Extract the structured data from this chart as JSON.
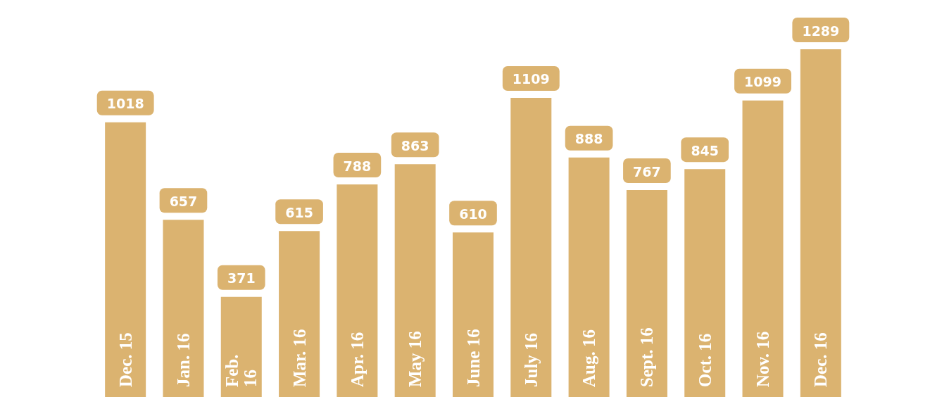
{
  "chart_data": {
    "type": "bar",
    "categories": [
      "Dec. 15",
      "Jan. 16",
      "Feb. 16",
      "Mar. 16",
      "Apr. 16",
      "May 16",
      "June 16",
      "July 16",
      "Aug. 16",
      "Sept. 16",
      "Oct. 16",
      "Nov. 16",
      "Dec. 16"
    ],
    "values": [
      1018,
      657,
      371,
      615,
      788,
      863,
      610,
      1109,
      888,
      767,
      845,
      1099,
      1289
    ],
    "color": "#dbb370",
    "data_labels": true
  }
}
